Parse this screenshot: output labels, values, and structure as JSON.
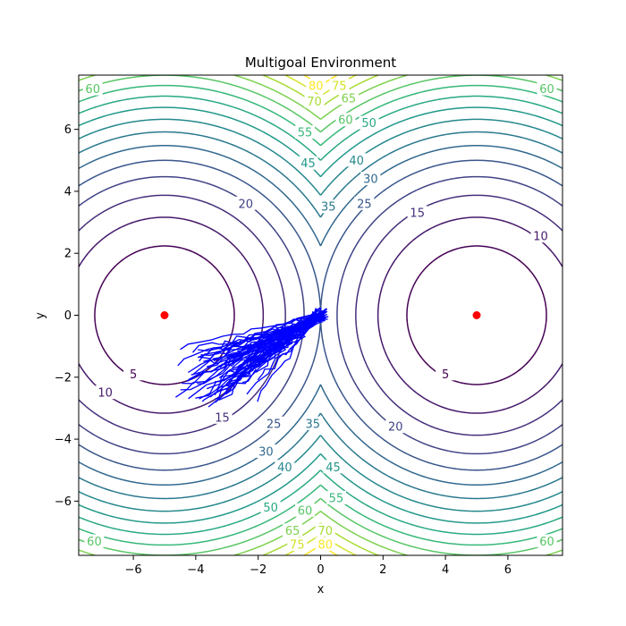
{
  "chart_data": {
    "type": "contour",
    "title": "Multigoal Environment",
    "xlabel": "x",
    "ylabel": "y",
    "xlim": [
      -7.75,
      7.75
    ],
    "ylim": [
      -7.75,
      7.75
    ],
    "x_ticks": [
      -6,
      -4,
      -2,
      0,
      2,
      4,
      6
    ],
    "y_ticks": [
      -6,
      -4,
      -2,
      0,
      2,
      4,
      6
    ],
    "grid": false,
    "contour_levels": [
      5,
      10,
      15,
      20,
      25,
      30,
      35,
      40,
      45,
      50,
      55,
      60,
      65,
      70,
      75,
      80
    ],
    "goals": [
      {
        "x": -5,
        "y": 0
      },
      {
        "x": 5,
        "y": 0
      }
    ],
    "goal_color": "#ff0000",
    "trajectory_color": "#0000ff",
    "trajectory_start": {
      "x": 0,
      "y": 0
    },
    "trajectory_spread": {
      "end_x_range": [
        -4.7,
        -2.0
      ],
      "end_y_range": [
        -2.9,
        -1.0
      ],
      "count": 60
    },
    "contour_label_positions": [
      {
        "level": 5,
        "x": -6.0,
        "y": -1.9
      },
      {
        "level": 10,
        "x": -6.9,
        "y": -2.5
      },
      {
        "level": 15,
        "x": -3.15,
        "y": -3.3
      },
      {
        "level": 20,
        "x": -2.4,
        "y": 3.6
      },
      {
        "level": 25,
        "x": -1.5,
        "y": -3.5
      },
      {
        "level": 30,
        "x": -1.75,
        "y": -4.4
      },
      {
        "level": 35,
        "x": 0.25,
        "y": 3.5
      },
      {
        "level": 40,
        "x": -1.15,
        "y": -4.9
      },
      {
        "level": 45,
        "x": -0.4,
        "y": 4.9
      },
      {
        "level": 50,
        "x": -1.6,
        "y": -6.2
      },
      {
        "level": 55,
        "x": -0.5,
        "y": 5.9
      },
      {
        "level": 60,
        "x": -7.3,
        "y": 7.3
      },
      {
        "level": 65,
        "x": 0.9,
        "y": 7.0
      },
      {
        "level": 70,
        "x": -0.2,
        "y": 6.9
      },
      {
        "level": 75,
        "x": 0.6,
        "y": 7.4
      },
      {
        "level": 80,
        "x": -0.15,
        "y": 7.4
      },
      {
        "level": 5,
        "x": 4.0,
        "y": -1.9
      },
      {
        "level": 10,
        "x": 7.05,
        "y": 2.55
      },
      {
        "level": 15,
        "x": 3.1,
        "y": 3.3
      },
      {
        "level": 20,
        "x": 2.4,
        "y": -3.6
      },
      {
        "level": 25,
        "x": 1.4,
        "y": 3.6
      },
      {
        "level": 30,
        "x": 1.6,
        "y": 4.4
      },
      {
        "level": 35,
        "x": -0.25,
        "y": -3.5
      },
      {
        "level": 40,
        "x": 1.15,
        "y": 5.0
      },
      {
        "level": 45,
        "x": 0.4,
        "y": -4.9
      },
      {
        "level": 50,
        "x": 1.55,
        "y": 6.2
      },
      {
        "level": 55,
        "x": 0.5,
        "y": -5.9
      },
      {
        "level": 60,
        "x": 7.25,
        "y": 7.3
      },
      {
        "level": 60,
        "x": 0.8,
        "y": 6.3
      },
      {
        "level": 60,
        "x": -0.5,
        "y": -6.3
      },
      {
        "level": 65,
        "x": -0.9,
        "y": -6.95
      },
      {
        "level": 70,
        "x": 0.15,
        "y": -6.95
      },
      {
        "level": 75,
        "x": -0.75,
        "y": -7.4
      },
      {
        "level": 80,
        "x": 0.15,
        "y": -7.4
      },
      {
        "level": 60,
        "x": -7.25,
        "y": -7.3
      },
      {
        "level": 60,
        "x": 7.25,
        "y": -7.3
      }
    ]
  }
}
